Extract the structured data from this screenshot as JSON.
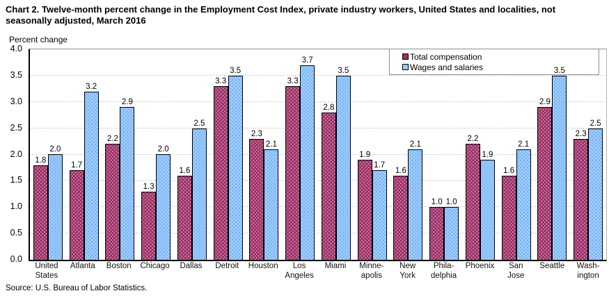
{
  "header": {
    "title": "Chart 2. Twelve-month percent change in the Employment Cost Index, private industry workers, United States and localities, not seasonally adjusted, March 2016",
    "axis_title": "Percent change"
  },
  "footer": {
    "source": "Source: U.S. Bureau of Labor Statistics."
  },
  "colors": {
    "total_compensation": "#993366",
    "wages_and_salaries": "#99ccff",
    "gridline": "#ababab",
    "axis": "#000000",
    "legend_border": "#909090"
  },
  "chart_data": {
    "type": "bar",
    "title": "Chart 2. Twelve-month percent change in the Employment Cost Index, private industry workers, United States and localities, not seasonally adjusted, March 2016",
    "xlabel": "",
    "ylabel": "Percent change",
    "ylim": [
      0.0,
      4.0
    ],
    "ytick_step": 0.5,
    "grid": true,
    "value_labels": true,
    "legend_position": "top-right",
    "categories": [
      "United\nStates",
      "Atlanta",
      "Boston",
      "Chicago",
      "Dallas",
      "Detroit",
      "Houston",
      "Los\nAngeles",
      "Miami",
      "Minne-\napolis",
      "New\nYork",
      "Phila-\ndelphia",
      "Phoenix",
      "San\nJose",
      "Seattle",
      "Wash-\nington"
    ],
    "series": [
      {
        "name": "Total compensation",
        "color": "#993366",
        "values": [
          1.8,
          1.7,
          2.2,
          1.3,
          1.6,
          3.3,
          2.3,
          3.3,
          2.8,
          1.9,
          1.6,
          1.0,
          2.2,
          1.6,
          2.9,
          2.3
        ]
      },
      {
        "name": "Wages and salaries",
        "color": "#99ccff",
        "values": [
          2.0,
          3.2,
          2.9,
          2.0,
          2.5,
          3.5,
          2.1,
          3.7,
          3.5,
          1.7,
          2.1,
          1.0,
          1.9,
          2.1,
          3.5,
          2.5
        ]
      }
    ]
  }
}
